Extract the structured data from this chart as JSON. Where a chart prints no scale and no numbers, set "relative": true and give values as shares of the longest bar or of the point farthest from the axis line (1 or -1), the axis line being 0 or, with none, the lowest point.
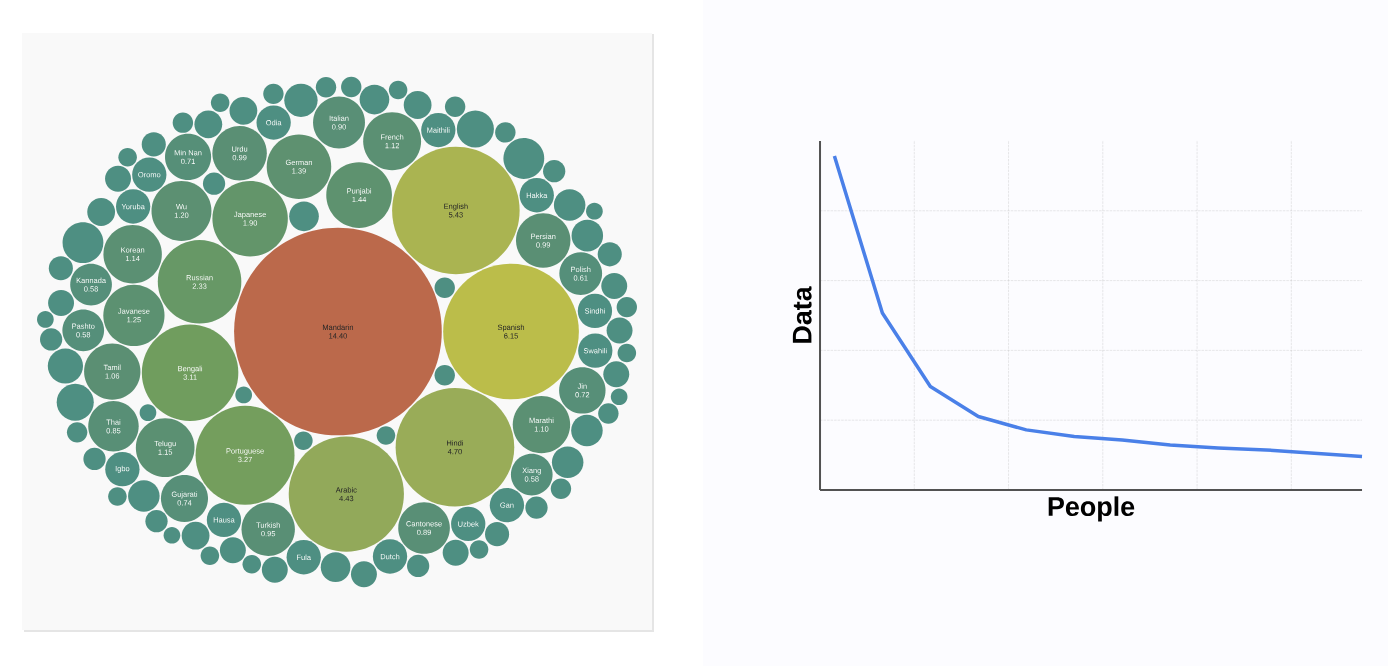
{
  "chart_data": [
    {
      "type": "other",
      "categories": [
        "Mandarin",
        "Spanish",
        "English",
        "Hindi",
        "Arabic",
        "Portuguese",
        "Bengali",
        "Russian",
        "Japanese",
        "Punjabi",
        "German",
        "Javanese",
        "Wu",
        "Telugu",
        "Korean",
        "French",
        "Marathi",
        "Tamil",
        "Persian",
        "Urdu",
        "Turkish",
        "Italian",
        "Cantonese",
        "Thai",
        "Gujarati",
        "Jin",
        "Min Nan",
        "Polish",
        "Kannada",
        "Pashto",
        "Xiang",
        "Hausa",
        "Yoruba",
        "Odia",
        "Hakka",
        "Maithili",
        "Sindhi",
        "Swahili",
        "Uzbek",
        "Oromo",
        "Gan",
        "Fula",
        "Igbo",
        "Dutch"
      ],
      "values": [
        14.4,
        6.15,
        5.43,
        4.7,
        4.43,
        3.27,
        3.11,
        2.33,
        1.9,
        1.44,
        1.39,
        1.25,
        1.2,
        1.15,
        1.14,
        1.12,
        1.1,
        1.06,
        0.99,
        0.99,
        0.95,
        0.9,
        0.89,
        0.85,
        0.74,
        0.72,
        0.71,
        0.61,
        0.58,
        0.58,
        0.58,
        null,
        null,
        null,
        null,
        null,
        null,
        null,
        null,
        null,
        null,
        null,
        null,
        null
      ],
      "value_labels": [
        "14.40",
        "6.15",
        "5.43",
        "4.70",
        "4.43",
        "3.27",
        "3.11",
        "2.33",
        "1.90",
        "1.44",
        "1.39",
        "1.25",
        "1.20",
        "1.15",
        "1.14",
        "1.12",
        "1.10",
        "1.06",
        "0.99",
        "0.99",
        "0.95",
        "0.90",
        "0.89",
        "0.85",
        "0.74",
        "0.72",
        "0.71",
        "0.61",
        "0.58",
        "0.58",
        "0.58",
        null,
        null,
        null,
        null,
        null,
        null,
        null,
        null,
        null,
        null,
        null,
        null,
        null
      ]
    },
    {
      "type": "line",
      "xlabel": "People",
      "ylabel": "Data",
      "relative": true,
      "grid": true,
      "categories": [
        null,
        null,
        null,
        null,
        null,
        null,
        null,
        null,
        null,
        null,
        null,
        null
      ],
      "series": [
        {
          "color": "#4a80e8",
          "values": [
            1.0,
            0.53,
            0.31,
            0.22,
            0.18,
            0.16,
            0.15,
            0.135,
            0.126,
            0.12,
            0.11,
            0.1
          ]
        }
      ]
    }
  ]
}
